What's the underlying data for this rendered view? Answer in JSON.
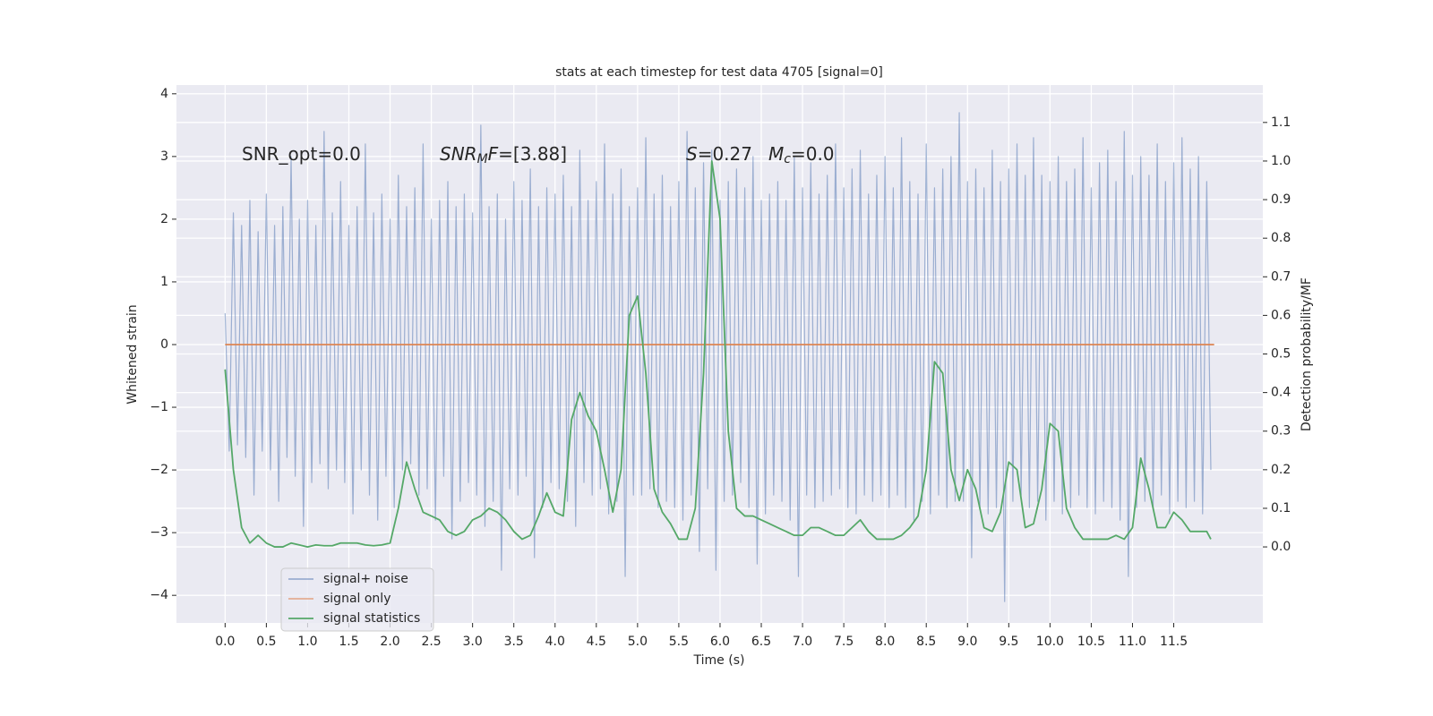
{
  "chart_data": {
    "type": "line",
    "title": "stats at each timestep for test data 4705 [signal=0]",
    "xlabel": "Time (s)",
    "ylabel": "Whitened strain",
    "y2label": "Detection probability/MF",
    "xlim": [
      -0.59,
      12.58
    ],
    "ylim": [
      -4.44,
      4.14
    ],
    "y2lim": [
      -0.197,
      1.197
    ],
    "xticks": [
      {
        "value": 0,
        "label": "0.0"
      },
      0.5,
      {
        "value": 1,
        "label": "1.0"
      },
      1.5,
      {
        "value": 2,
        "label": "2.0"
      },
      2.5,
      {
        "value": 3,
        "label": "3.0"
      },
      3.5,
      {
        "value": 4,
        "label": "4.0"
      },
      4.5,
      {
        "value": 5,
        "label": "5.0"
      },
      5.5,
      {
        "value": 6,
        "label": "6.0"
      },
      6.5,
      {
        "value": 7,
        "label": "7.0"
      },
      7.5,
      {
        "value": 8,
        "label": "8.0"
      },
      8.5,
      {
        "value": 9,
        "label": "9.0"
      },
      9.5,
      {
        "value": 10,
        "label": "10.0"
      },
      10.5,
      {
        "value": 11,
        "label": "11.0"
      },
      11.5
    ],
    "yticks": [
      {
        "value": -4,
        "label": "−4"
      },
      {
        "value": -3,
        "label": "−3"
      },
      {
        "value": -2,
        "label": "−2"
      },
      {
        "value": -1,
        "label": "−1"
      },
      0,
      1,
      2,
      3,
      4
    ],
    "y2ticks": [
      {
        "value": 0,
        "label": "0.0"
      },
      0.1,
      0.2,
      0.3,
      0.4,
      0.5,
      0.6,
      0.7,
      0.8,
      0.9,
      {
        "value": 1,
        "label": "1.0"
      },
      1.1
    ],
    "grid": true,
    "annotations": [
      [
        {
          "text": "SNR_opt=0.0"
        }
      ],
      [
        {
          "text": "SNR",
          "italic": true
        },
        {
          "text": "M",
          "italic": true,
          "sub": true
        },
        {
          "text": "F",
          "italic": true
        },
        {
          "text": "=[3.88]"
        }
      ],
      [
        {
          "text": "S",
          "italic": true
        },
        {
          "text": "=0.27"
        }
      ],
      [
        {
          "text": "M",
          "italic": true
        },
        {
          "text": "c",
          "italic": true,
          "sub": true
        },
        {
          "text": "=0.0"
        }
      ]
    ],
    "series": [
      {
        "name": "signal+ noise",
        "color": "#4c72b0",
        "x": [
          0,
          0.05,
          0.1,
          0.15,
          0.2,
          0.25,
          0.3,
          0.35,
          0.4,
          0.45,
          0.5,
          0.55,
          0.6,
          0.65,
          0.7,
          0.75,
          0.8,
          0.85,
          0.9,
          0.95,
          1,
          1.05,
          1.1,
          1.15,
          1.2,
          1.25,
          1.3,
          1.35,
          1.4,
          1.45,
          1.5,
          1.55,
          1.6,
          1.65,
          1.7,
          1.75,
          1.8,
          1.85,
          1.9,
          1.95,
          2,
          2.05,
          2.1,
          2.15,
          2.2,
          2.25,
          2.3,
          2.35,
          2.4,
          2.45,
          2.5,
          2.55,
          2.6,
          2.65,
          2.7,
          2.75,
          2.8,
          2.85,
          2.9,
          2.95,
          3,
          3.05,
          3.1,
          3.15,
          3.2,
          3.25,
          3.3,
          3.35,
          3.4,
          3.45,
          3.5,
          3.55,
          3.6,
          3.65,
          3.7,
          3.75,
          3.8,
          3.85,
          3.9,
          3.95,
          4,
          4.05,
          4.1,
          4.15,
          4.2,
          4.25,
          4.3,
          4.35,
          4.4,
          4.45,
          4.5,
          4.55,
          4.6,
          4.65,
          4.7,
          4.75,
          4.8,
          4.85,
          4.9,
          4.95,
          5,
          5.05,
          5.1,
          5.15,
          5.2,
          5.25,
          5.3,
          5.35,
          5.4,
          5.45,
          5.5,
          5.55,
          5.6,
          5.65,
          5.7,
          5.75,
          5.8,
          5.85,
          5.9,
          5.95,
          6,
          6.05,
          6.1,
          6.15,
          6.2,
          6.25,
          6.3,
          6.35,
          6.4,
          6.45,
          6.5,
          6.55,
          6.6,
          6.65,
          6.7,
          6.75,
          6.8,
          6.85,
          6.9,
          6.95,
          7,
          7.05,
          7.1,
          7.15,
          7.2,
          7.25,
          7.3,
          7.35,
          7.4,
          7.45,
          7.5,
          7.55,
          7.6,
          7.65,
          7.7,
          7.75,
          7.8,
          7.85,
          7.9,
          7.95,
          8,
          8.05,
          8.1,
          8.15,
          8.2,
          8.25,
          8.3,
          8.35,
          8.4,
          8.45,
          8.5,
          8.55,
          8.6,
          8.65,
          8.7,
          8.75,
          8.8,
          8.85,
          8.9,
          8.95,
          9,
          9.05,
          9.1,
          9.15,
          9.2,
          9.25,
          9.3,
          9.35,
          9.4,
          9.45,
          9.5,
          9.55,
          9.6,
          9.65,
          9.7,
          9.75,
          9.8,
          9.85,
          9.9,
          9.95,
          10,
          10.05,
          10.1,
          10.15,
          10.2,
          10.25,
          10.3,
          10.35,
          10.4,
          10.45,
          10.5,
          10.55,
          10.6,
          10.65,
          10.7,
          10.75,
          10.8,
          10.85,
          10.9,
          10.95,
          11,
          11.05,
          11.1,
          11.15,
          11.2,
          11.25,
          11.3,
          11.35,
          11.4,
          11.45,
          11.5,
          11.55,
          11.6,
          11.65,
          11.7,
          11.75,
          11.8,
          11.85,
          11.9,
          11.95
        ],
        "values": [
          0.5,
          -1.7,
          2.1,
          -1.6,
          1.9,
          -1.8,
          2.3,
          -2.4,
          1.8,
          -1.7,
          2.4,
          -2.0,
          1.9,
          -2.5,
          2.2,
          -1.8,
          3.0,
          -2.1,
          2.0,
          -2.9,
          2.3,
          -2.2,
          1.9,
          -1.9,
          3.4,
          -2.3,
          2.1,
          -2.0,
          2.6,
          -2.2,
          1.9,
          -2.7,
          2.2,
          -2.0,
          3.2,
          -2.4,
          2.1,
          -2.8,
          2.4,
          -2.1,
          2.0,
          -2.6,
          2.7,
          -2.0,
          2.2,
          -1.9,
          2.5,
          -2.4,
          3.2,
          -2.3,
          2.0,
          -2.8,
          2.3,
          -2.1,
          2.6,
          -3.1,
          2.2,
          -2.5,
          2.4,
          -2.2,
          2.1,
          -2.4,
          3.5,
          -2.9,
          2.2,
          -2.5,
          2.4,
          -3.6,
          2.0,
          -2.3,
          2.6,
          -2.4,
          2.3,
          -2.1,
          2.8,
          -3.4,
          2.2,
          -2.6,
          2.5,
          -2.2,
          2.4,
          -2.3,
          2.7,
          -2.5,
          2.2,
          -2.9,
          3.1,
          -2.2,
          2.3,
          -2.4,
          2.6,
          -2.3,
          3.2,
          -2.7,
          2.4,
          -2.5,
          2.8,
          -3.7,
          2.2,
          -2.4,
          2.5,
          -2.4,
          3.3,
          -2.3,
          2.4,
          -2.6,
          2.7,
          -2.5,
          2.2,
          -2.6,
          2.6,
          -2.8,
          3.4,
          -2.4,
          2.5,
          -3.3,
          2.9,
          -2.3,
          3.1,
          -3.6,
          2.3,
          -2.5,
          2.6,
          -2.4,
          2.8,
          -2.2,
          2.5,
          -2.6,
          3.0,
          -3.5,
          2.3,
          -2.7,
          2.4,
          -2.4,
          2.6,
          -2.5,
          2.3,
          -2.8,
          3.0,
          -3.7,
          2.5,
          -2.4,
          2.9,
          -2.6,
          2.4,
          -2.5,
          2.7,
          -2.4,
          3.2,
          -2.3,
          2.5,
          -2.6,
          2.8,
          -2.7,
          3.1,
          -2.4,
          2.4,
          -2.5,
          2.7,
          -2.4,
          3.0,
          -2.6,
          2.5,
          -2.4,
          3.3,
          -2.6,
          2.6,
          -2.8,
          2.4,
          -2.5,
          3.2,
          -2.7,
          2.5,
          -2.4,
          2.8,
          -2.6,
          3.0,
          -2.5,
          3.7,
          -2.5,
          2.6,
          -3.4,
          2.8,
          -2.6,
          2.5,
          -2.7,
          3.1,
          -2.6,
          2.6,
          -4.1,
          2.8,
          -2.5,
          3.2,
          -2.4,
          2.7,
          -2.6,
          3.3,
          -2.5,
          2.7,
          -2.8,
          2.6,
          -2.5,
          3.0,
          -2.7,
          2.6,
          -2.6,
          2.8,
          -2.4,
          3.3,
          -2.6,
          2.5,
          -2.7,
          2.9,
          -2.5,
          3.1,
          -2.6,
          2.6,
          -2.8,
          3.4,
          -3.7,
          2.7,
          -2.6,
          3.0,
          -2.5,
          2.7,
          -2.6,
          3.2,
          -2.4,
          2.6,
          -2.7,
          2.9,
          -2.5,
          3.3,
          -2.6,
          2.8,
          -2.5,
          3.0,
          -2.7,
          2.6,
          -2.0
        ]
      },
      {
        "name": "signal only",
        "color": "#dd8452",
        "x": [
          0,
          11.99
        ],
        "values": [
          0,
          0
        ]
      },
      {
        "name": "signal statistics",
        "color": "#55a868",
        "axis": "y2",
        "x": [
          0,
          0.1,
          0.2,
          0.3,
          0.4,
          0.5,
          0.6,
          0.7,
          0.8,
          0.9,
          1,
          1.1,
          1.2,
          1.3,
          1.4,
          1.5,
          1.6,
          1.7,
          1.8,
          1.9,
          2,
          2.1,
          2.2,
          2.3,
          2.4,
          2.5,
          2.6,
          2.7,
          2.8,
          2.9,
          3,
          3.1,
          3.2,
          3.3,
          3.4,
          3.5,
          3.6,
          3.7,
          3.8,
          3.9,
          4,
          4.1,
          4.2,
          4.3,
          4.4,
          4.5,
          4.6,
          4.7,
          4.8,
          4.9,
          5,
          5.1,
          5.2,
          5.3,
          5.4,
          5.5,
          5.6,
          5.7,
          5.8,
          5.9,
          6,
          6.1,
          6.2,
          6.3,
          6.4,
          6.5,
          6.6,
          6.7,
          6.8,
          6.9,
          7,
          7.1,
          7.2,
          7.3,
          7.4,
          7.5,
          7.6,
          7.7,
          7.8,
          7.9,
          8,
          8.1,
          8.2,
          8.3,
          8.4,
          8.5,
          8.6,
          8.7,
          8.8,
          8.9,
          9,
          9.1,
          9.2,
          9.3,
          9.4,
          9.5,
          9.6,
          9.7,
          9.8,
          9.9,
          10,
          10.1,
          10.2,
          10.3,
          10.4,
          10.5,
          10.6,
          10.7,
          10.8,
          10.9,
          11,
          11.1,
          11.2,
          11.3,
          11.4,
          11.5,
          11.6,
          11.7,
          11.8,
          11.9,
          11.95
        ],
        "values": [
          0.46,
          0.2,
          0.05,
          0.01,
          0.03,
          0.01,
          0,
          0,
          0.01,
          0.005,
          0,
          0.005,
          0.003,
          0.003,
          0.01,
          0.01,
          0.01,
          0.005,
          0.003,
          0.005,
          0.01,
          0.1,
          0.22,
          0.15,
          0.09,
          0.08,
          0.07,
          0.04,
          0.03,
          0.04,
          0.07,
          0.08,
          0.1,
          0.09,
          0.07,
          0.04,
          0.02,
          0.03,
          0.08,
          0.14,
          0.09,
          0.08,
          0.33,
          0.4,
          0.34,
          0.3,
          0.2,
          0.09,
          0.2,
          0.6,
          0.65,
          0.45,
          0.15,
          0.09,
          0.06,
          0.02,
          0.02,
          0.1,
          0.45,
          1.0,
          0.85,
          0.3,
          0.1,
          0.08,
          0.08,
          0.07,
          0.06,
          0.05,
          0.04,
          0.03,
          0.03,
          0.05,
          0.05,
          0.04,
          0.03,
          0.03,
          0.05,
          0.07,
          0.04,
          0.02,
          0.02,
          0.02,
          0.03,
          0.05,
          0.08,
          0.2,
          0.48,
          0.45,
          0.2,
          0.12,
          0.2,
          0.15,
          0.05,
          0.04,
          0.09,
          0.22,
          0.2,
          0.05,
          0.06,
          0.15,
          0.32,
          0.3,
          0.1,
          0.05,
          0.02,
          0.02,
          0.02,
          0.02,
          0.03,
          0.02,
          0.05,
          0.23,
          0.15,
          0.05,
          0.05,
          0.09,
          0.07,
          0.04,
          0.04,
          0.04,
          0.02
        ]
      }
    ]
  }
}
